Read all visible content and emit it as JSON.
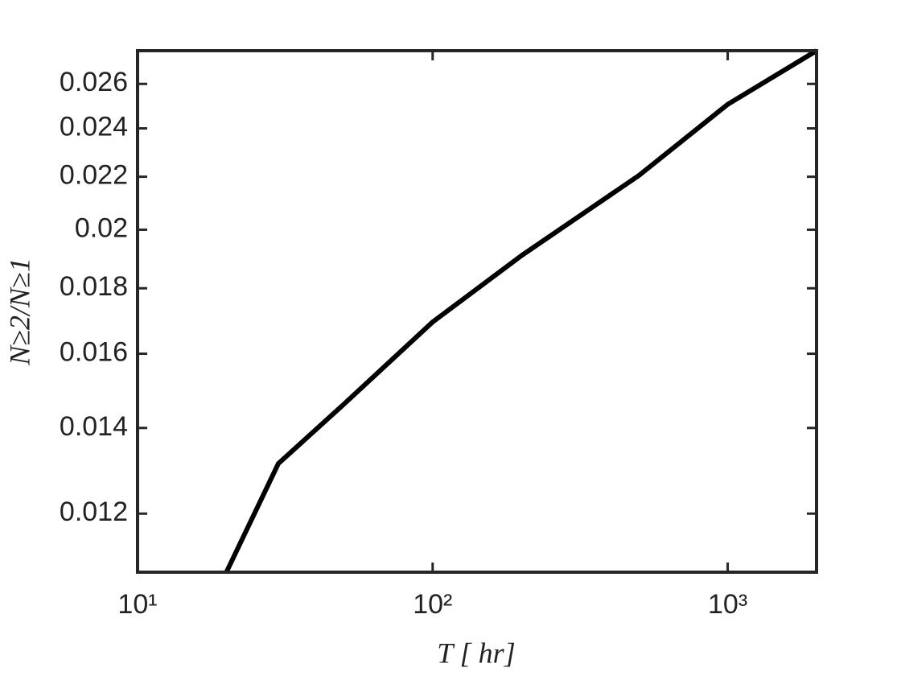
{
  "chart_data": {
    "type": "line",
    "xlabel": "T [ hr]",
    "ylabel": "N≥2/N≥1",
    "x": [
      20,
      30,
      50,
      100,
      200,
      500,
      1000,
      2000
    ],
    "series": [
      {
        "color": "#000000",
        "values": [
          0.0108,
          0.01313,
          0.01461,
          0.01694,
          0.01909,
          0.02205,
          0.02506,
          0.0276
        ]
      }
    ],
    "xscale": "log",
    "yscale": "log",
    "xlim": [
      10,
      2000
    ],
    "ylim": [
      0.0108,
      0.0276
    ],
    "xticks": [
      {
        "value": 10,
        "label": "10¹"
      },
      {
        "value": 100,
        "label": "10²"
      },
      {
        "value": 1000,
        "label": "10³"
      }
    ],
    "yticks": [
      0.012,
      0.014,
      0.016,
      0.018,
      0.02,
      0.022,
      0.024,
      0.026
    ]
  }
}
